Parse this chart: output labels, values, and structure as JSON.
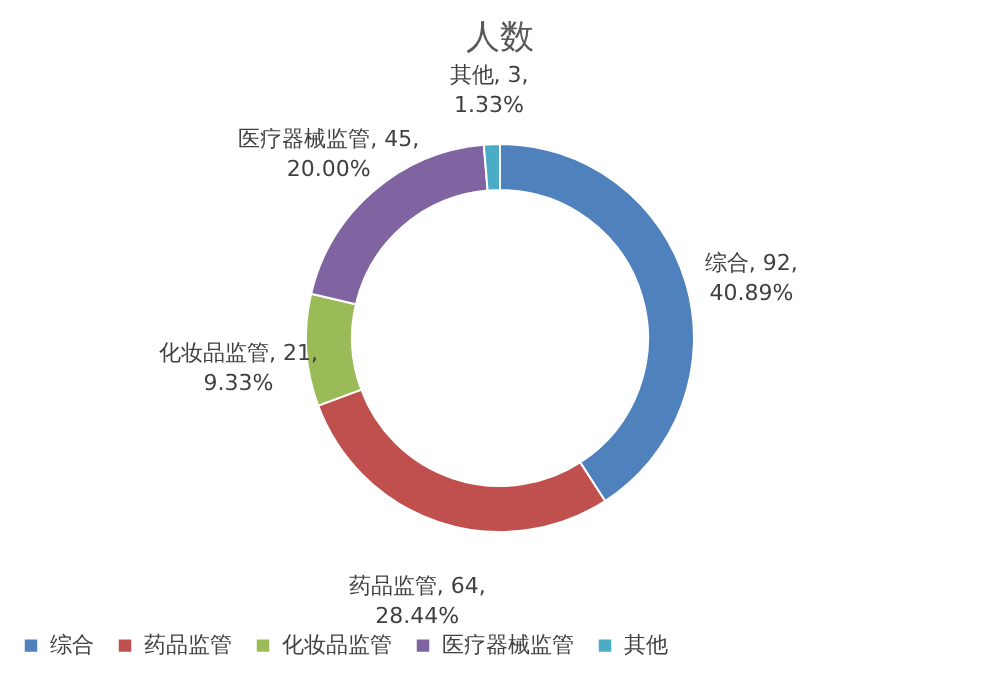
{
  "chart_data": {
    "type": "donut",
    "title": "人数",
    "categories": [
      "综合",
      "药品监管",
      "化妆品监管",
      "医疗器械监管",
      "其他"
    ],
    "values": [
      92,
      64,
      21,
      45,
      3
    ],
    "colors": [
      "#4f81bd",
      "#c0504d",
      "#9bbb59",
      "#8064a2",
      "#4bacc6"
    ],
    "value_labels": [
      "综合, 92, 40.89%",
      "药品监管, 64, 28.44%",
      "化妆品监管, 21, 9.33%",
      "医疗器械监管, 45, 20.00%",
      "其他, 3, 1.33%"
    ],
    "legend": "bottom"
  }
}
